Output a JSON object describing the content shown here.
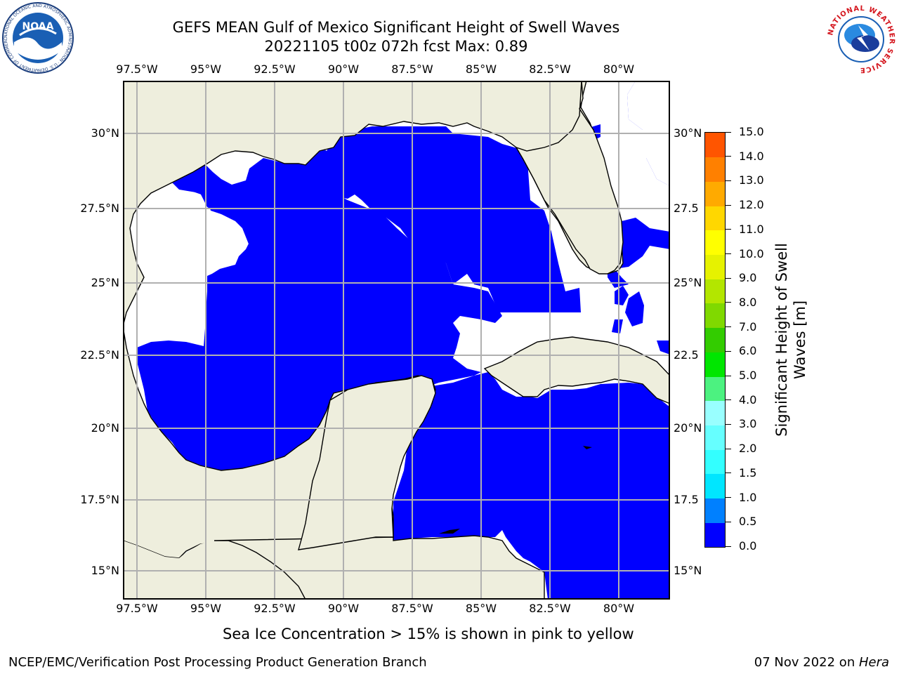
{
  "title": {
    "line1": "GEFS MEAN Gulf of Mexico Significant Height of Swell Waves",
    "line2": "20221105 t00z 072h fcst   Max: 0.89"
  },
  "logos": {
    "left": {
      "name": "noaa-logo",
      "text": "NOAA",
      "ring_text": "NATIONAL OCEANIC AND ATMOSPHERIC ADMINISTRATION · U.S. DEPARTMENT OF COMMERCE"
    },
    "right": {
      "name": "nws-logo",
      "ring_text": "NATIONAL WEATHER SERVICE"
    }
  },
  "map": {
    "lon_labels": [
      "97.5°W",
      "95°W",
      "92.5°W",
      "90°W",
      "87.5°W",
      "85°W",
      "82.5°W",
      "80°W"
    ],
    "lat_labels_left": [
      "30°N",
      "27.5°N",
      "25°N",
      "22.5°N",
      "20°N",
      "17.5°N",
      "15°N"
    ],
    "lat_labels_right": [
      "30°N",
      "27.5",
      "25°N",
      "22.5",
      "20°N",
      "17.5",
      "15°N"
    ],
    "colors": {
      "land": "#eeeedd",
      "swell_0_0.5": "#0000ff",
      "swell_0.5_1.0": "#0080ff",
      "grid": "#b0b0b0",
      "ocean_no_data": "#ffffff"
    }
  },
  "colorbar": {
    "label_line1": "Significant Height of Swell",
    "label_line2": "Waves [m]",
    "ticks": [
      "0.0",
      "0.5",
      "1.0",
      "1.5",
      "2.0",
      "3.0",
      "4.0",
      "5.0",
      "6.0",
      "7.0",
      "8.0",
      "9.0",
      "10.0",
      "11.0",
      "12.0",
      "13.0",
      "14.0",
      "15.0"
    ],
    "colors": [
      "#0000ff",
      "#0080ff",
      "#00e6ff",
      "#33ffff",
      "#66ffff",
      "#99ffff",
      "#4cf280",
      "#00e600",
      "#33cc00",
      "#80d900",
      "#b3e600",
      "#e6f200",
      "#ffff00",
      "#ffd700",
      "#ffaa00",
      "#ff8000",
      "#ff5500",
      "#ff2a00",
      "#ff0000"
    ]
  },
  "sea_ice_note": "Sea Ice Concentration > 15% is shown in pink to yellow",
  "footer": {
    "left": "NCEP/EMC/Verification Post Processing Product Generation Branch",
    "right_prefix": "07 Nov 2022 on ",
    "right_host": "Hera"
  }
}
